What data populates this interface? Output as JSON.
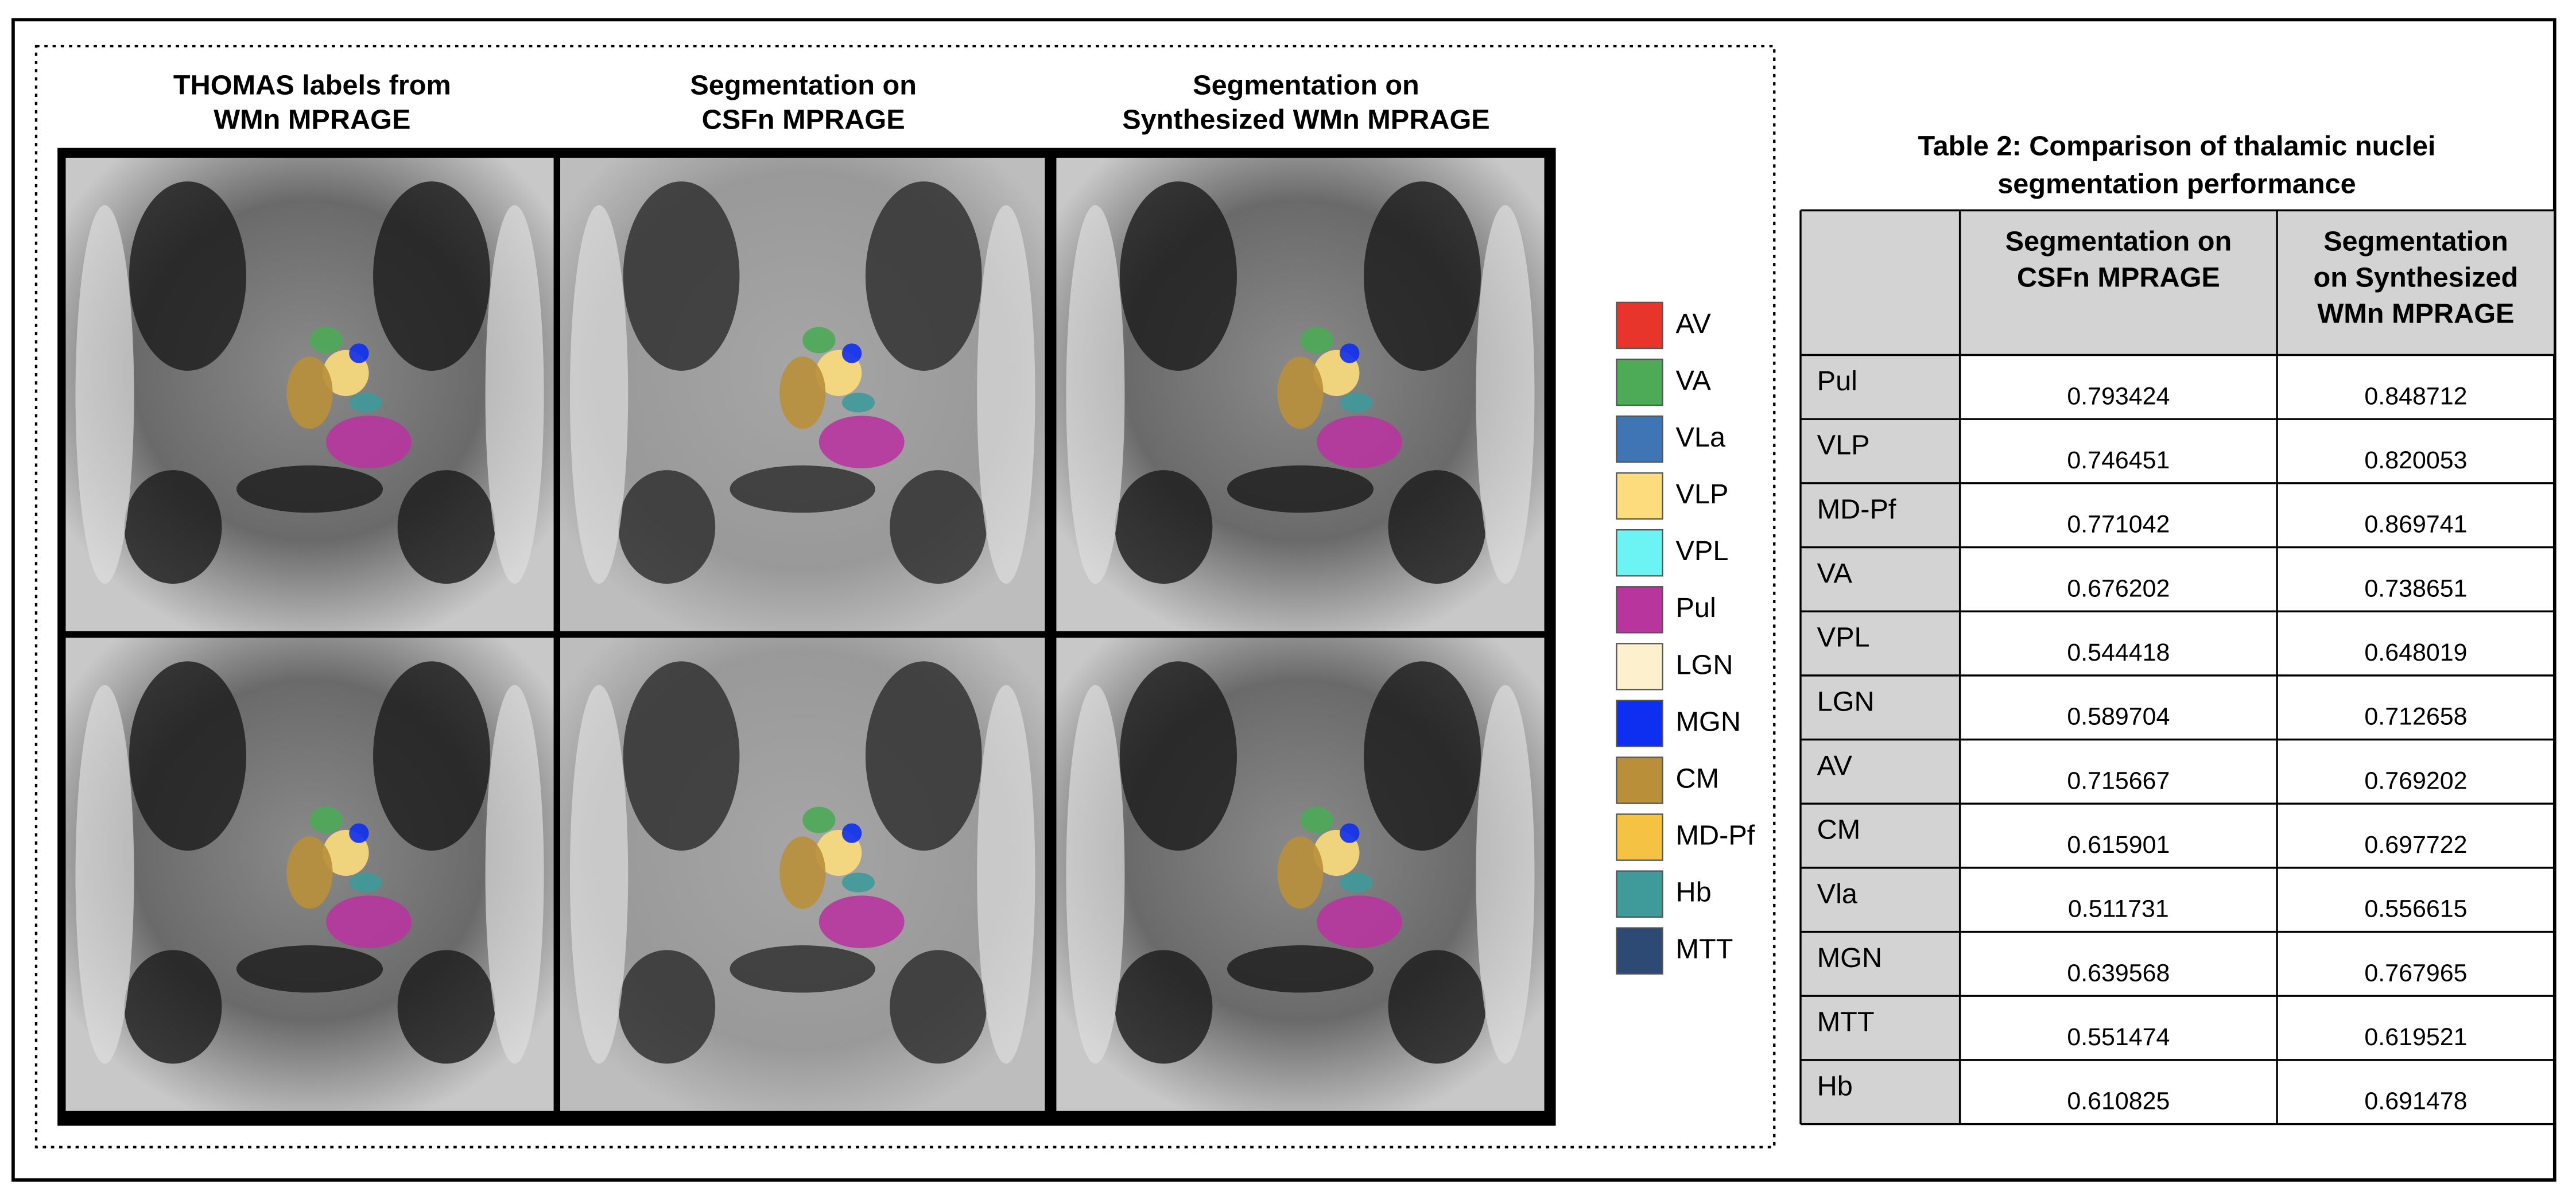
{
  "figure": {
    "columns": [
      [
        "THOMAS labels from",
        "WMn MPRAGE"
      ],
      [
        "Segmentation on",
        "CSFn MPRAGE"
      ],
      [
        "Segmentation on",
        "Synthesized WMn MPRAGE"
      ]
    ],
    "legend": [
      {
        "name": "AV",
        "color": "#e8352c"
      },
      {
        "name": "VA",
        "color": "#4daa57"
      },
      {
        "name": "VLa",
        "color": "#3f74b5"
      },
      {
        "name": "VLP",
        "color": "#fcdc7c"
      },
      {
        "name": "VPL",
        "color": "#6cf4f4"
      },
      {
        "name": "Pul",
        "color": "#b8359e"
      },
      {
        "name": "LGN",
        "color": "#fdf0cc"
      },
      {
        "name": "MGN",
        "color": "#0e2ff0"
      },
      {
        "name": "CM",
        "color": "#b98f3a"
      },
      {
        "name": "MD-Pf",
        "color": "#f6c244"
      },
      {
        "name": "Hb",
        "color": "#3f9a9a"
      },
      {
        "name": "MTT",
        "color": "#2c4a74"
      }
    ]
  },
  "table": {
    "title": [
      "Table 2: Comparison of thalamic nuclei",
      "segmentation performance"
    ],
    "header": [
      [
        "Segmentation on",
        "CSFn MPRAGE"
      ],
      [
        "Segmentation",
        "on Synthesized",
        "WMn MPRAGE"
      ]
    ],
    "rows": [
      [
        "Pul",
        0.793424,
        0.848712
      ],
      [
        "VLP",
        0.746451,
        0.820053
      ],
      [
        "MD-Pf",
        0.771042,
        0.869741
      ],
      [
        "VA",
        0.676202,
        0.738651
      ],
      [
        "VPL",
        0.544418,
        0.648019
      ],
      [
        "LGN",
        0.589704,
        0.712658
      ],
      [
        "AV",
        0.715667,
        0.769202
      ],
      [
        "CM",
        0.615901,
        0.697722
      ],
      [
        "Vla",
        0.511731,
        0.556615
      ],
      [
        "MGN",
        0.639568,
        0.767965
      ],
      [
        "MTT",
        0.551474,
        0.619521
      ],
      [
        "Hb",
        0.610825,
        0.691478
      ]
    ]
  }
}
